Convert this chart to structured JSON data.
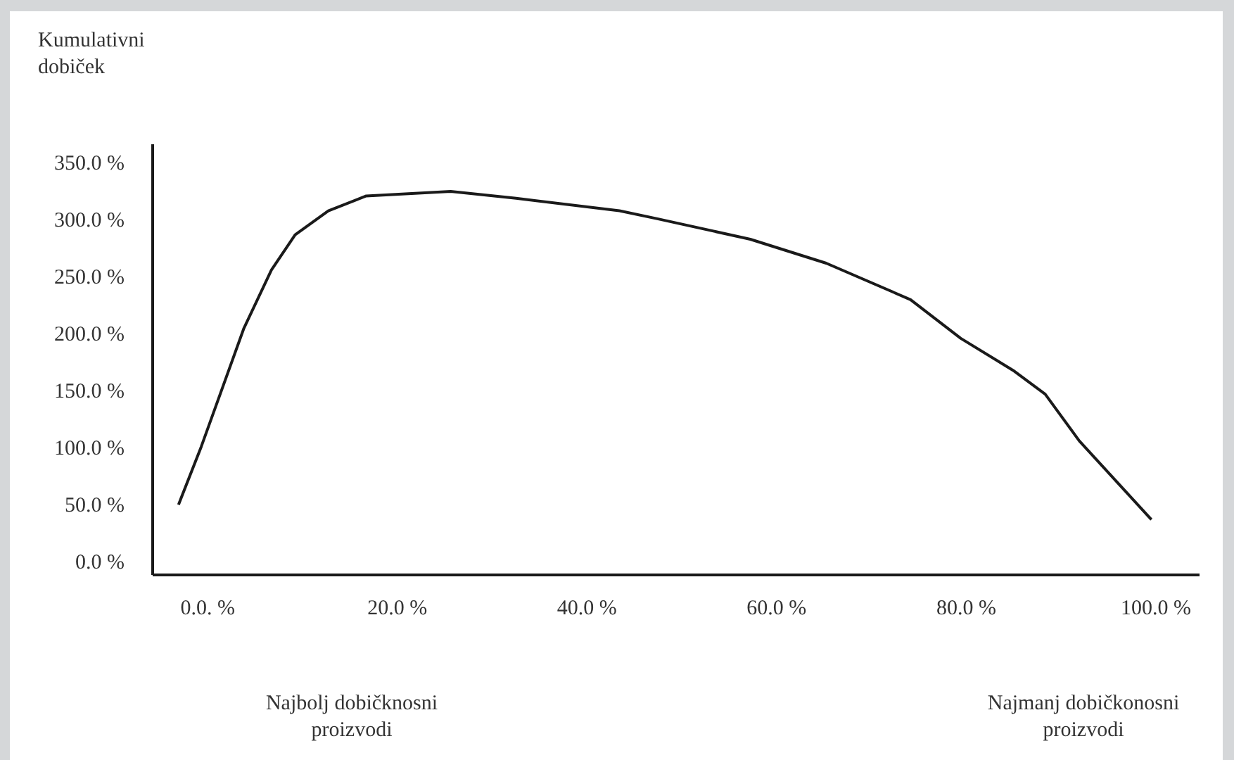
{
  "chart_data": {
    "type": "line",
    "ylabel": "Kumulativni dobiček",
    "x": [
      -3.0,
      -0.6,
      3.9,
      6.8,
      9.3,
      12.8,
      16.8,
      25.7,
      32.6,
      43.5,
      47.5,
      57.3,
      65.3,
      74.2,
      79.5,
      85.0,
      88.4,
      92.0,
      99.6
    ],
    "series": [
      {
        "color": "#1a1a1a",
        "values": [
          49,
          100,
          204,
          255,
          286,
          307,
          320,
          324,
          318,
          307,
          300,
          282,
          261,
          229,
          195,
          167,
          146,
          105,
          36
        ]
      }
    ],
    "xlim": [
      -5.8,
      104.6
    ],
    "xticks": [
      {
        "value": 0,
        "label": "0.0. %"
      },
      {
        "value": 20,
        "label": "20.0 %"
      },
      {
        "value": 40,
        "label": "40.0 %"
      },
      {
        "value": 60,
        "label": "60.0 %"
      },
      {
        "value": 80,
        "label": "80.0 %"
      },
      {
        "value": 100,
        "label": "100.0 %"
      }
    ],
    "ylim": [
      -12,
      366
    ],
    "yticks": [
      {
        "value": 0,
        "label": "0.0 %"
      },
      {
        "value": 50,
        "label": "50.0 %"
      },
      {
        "value": 100,
        "label": "100.0 %"
      },
      {
        "value": 150,
        "label": "150.0 %"
      },
      {
        "value": 200,
        "label": "200.0 %"
      },
      {
        "value": 250,
        "label": "250.0 %"
      },
      {
        "value": 300,
        "label": "300.0 %"
      },
      {
        "value": 350,
        "label": "350.0 %"
      }
    ],
    "annotations": [
      "Najbolj dobičknosni proizvodi",
      "Najmanj dobičkonosni proizvodi"
    ],
    "grid": false
  }
}
